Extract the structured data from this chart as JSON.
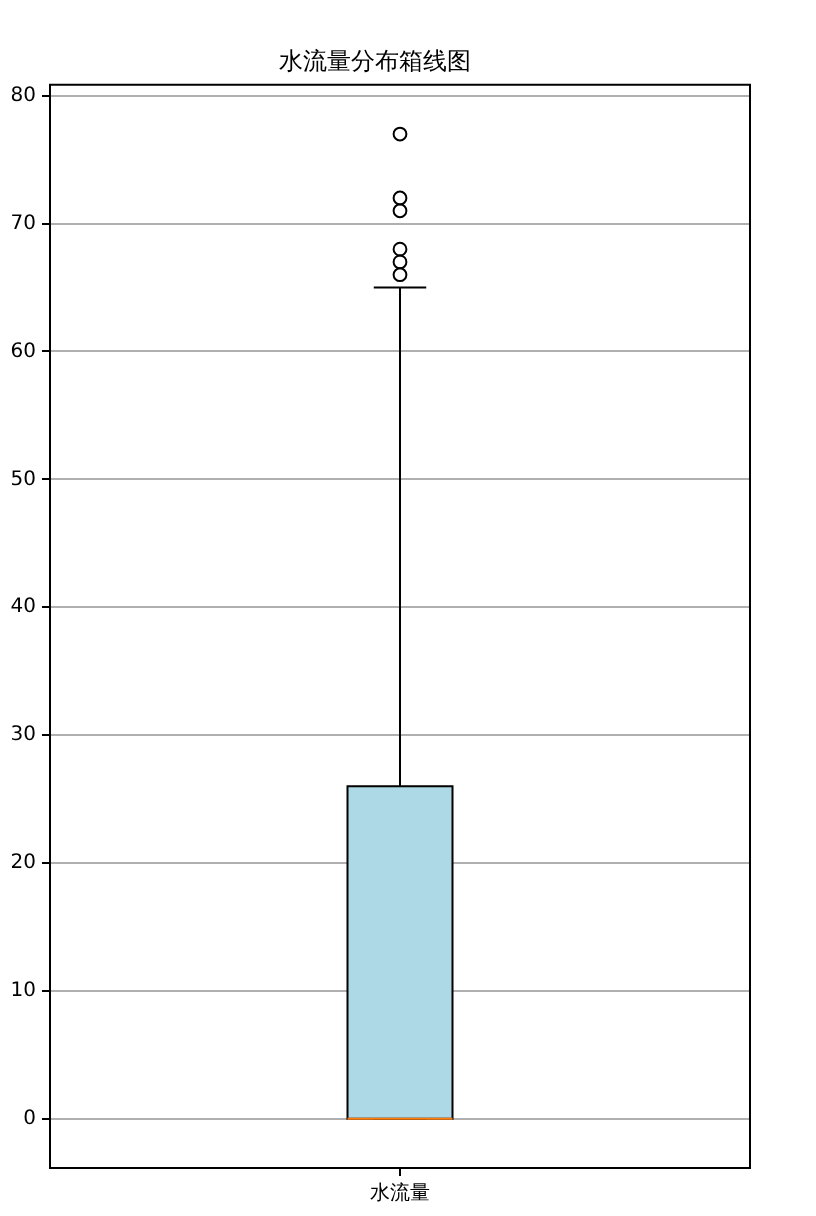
{
  "chart_data": {
    "type": "box",
    "title": "水流量分布箱线图",
    "categories": [
      "水流量"
    ],
    "boxes": [
      {
        "low": 0,
        "q1": 0,
        "median": 0,
        "q3": 26,
        "high": 65,
        "outliers": [
          66,
          67,
          68,
          71,
          72,
          77
        ]
      }
    ],
    "color": "#add8e6",
    "ylim": [
      -3.85,
      80.85
    ],
    "yticks": [
      0,
      10,
      20,
      30,
      40,
      50,
      60,
      70,
      80
    ],
    "grid": "y"
  }
}
